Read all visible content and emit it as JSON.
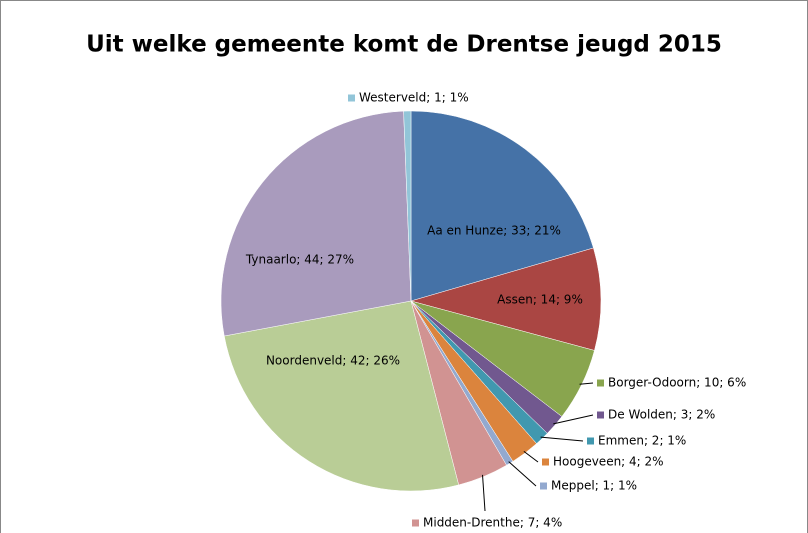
{
  "chart_data": {
    "type": "pie",
    "title": "Uit welke gemeente komt de Drentse jeugd 2015",
    "categories": [
      "Aa en Hunze",
      "Assen",
      "Borger-Odoorn",
      "De Wolden",
      "Emmen",
      "Hoogeveen",
      "Meppel",
      "Midden-Drenthe",
      "Noordenveld",
      "Tynaarlo",
      "Westerveld"
    ],
    "values": [
      33,
      14,
      10,
      3,
      2,
      4,
      1,
      7,
      42,
      44,
      1
    ],
    "value_labels": [
      "Aa en Hunze; 33; 21%",
      "Assen; 14; 9%",
      "Borger-Odoorn; 10; 6%",
      "De Wolden; 3; 2%",
      "Emmen; 2; 1%",
      "Hoogeveen; 4; 2%",
      "Meppel; 1; 1%",
      "Midden-Drenthe; 7; 4%",
      "Noordenveld; 42; 26%",
      "Tynaarlo; 44; 27%",
      "Westerveld; 1; 1%"
    ],
    "colors": [
      "#4572a7",
      "#aa4643",
      "#89a54e",
      "#71588f",
      "#4198af",
      "#db843d",
      "#93a9cf",
      "#d19392",
      "#b9cd96",
      "#a99bbd",
      "#92c5d8"
    ]
  }
}
